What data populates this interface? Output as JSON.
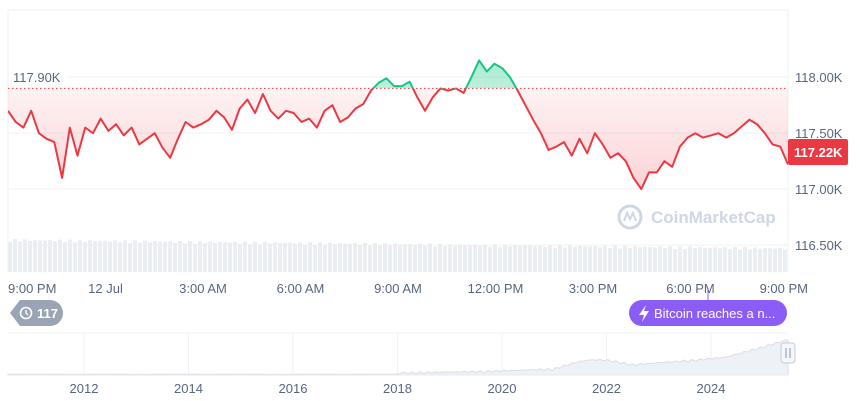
{
  "chart_data": {
    "type": "line",
    "title": "",
    "xlabel": "",
    "ylabel": "",
    "x_ticks": [
      "9:00 PM",
      "12 Jul",
      "3:00 AM",
      "6:00 AM",
      "9:00 AM",
      "12:00 PM",
      "3:00 PM",
      "6:00 PM",
      "9:00 PM"
    ],
    "y_ticks": [
      "116.50K",
      "117.00K",
      "117.50K",
      "118.00K"
    ],
    "ylim": [
      116260,
      118600
    ],
    "reference_line": {
      "value": 117900,
      "label": "117.90K"
    },
    "current_price": {
      "value": 117220,
      "label": "117.22K"
    },
    "grid": true,
    "colors": {
      "above": "#16c784",
      "below": "#ea3943",
      "accent": "#8b5cf6",
      "badge": "#9aa4b5"
    },
    "series": [
      {
        "values": [
          117700,
          117600,
          117550,
          117700,
          117500,
          117450,
          117420,
          117100,
          117550,
          117300,
          117550,
          117500,
          117630,
          117520,
          117580,
          117480,
          117550,
          117400,
          117450,
          117500,
          117370,
          117280,
          117450,
          117600,
          117550,
          117580,
          117620,
          117700,
          117640,
          117530,
          117720,
          117800,
          117680,
          117850,
          117700,
          117630,
          117700,
          117680,
          117600,
          117630,
          117550,
          117700,
          117750,
          117600,
          117640,
          117720,
          117760,
          117880,
          117950,
          117990,
          117920,
          117920,
          117960,
          117820,
          117700,
          117820,
          117900,
          117880,
          117900,
          117860,
          118000,
          118150,
          118050,
          118120,
          118080,
          118000,
          117880,
          117750,
          117620,
          117500,
          117350,
          117380,
          117420,
          117300,
          117450,
          117320,
          117500,
          117400,
          117280,
          117320,
          117250,
          117100,
          117000,
          117150,
          117150,
          117250,
          117200,
          117380,
          117460,
          117500,
          117460,
          117480,
          117500,
          117460,
          117500,
          117560,
          117620,
          117580,
          117500,
          117400,
          117380,
          117220
        ]
      }
    ],
    "overview": {
      "years": [
        "2012",
        "2014",
        "2016",
        "2018",
        "2020",
        "2022",
        "2024"
      ]
    }
  },
  "badges": {
    "annotation_count": "117"
  },
  "event": {
    "text": "Bitcoin reaches a n...",
    "icon": "lightning-icon"
  },
  "brand": {
    "name": "CoinMarketCap"
  }
}
